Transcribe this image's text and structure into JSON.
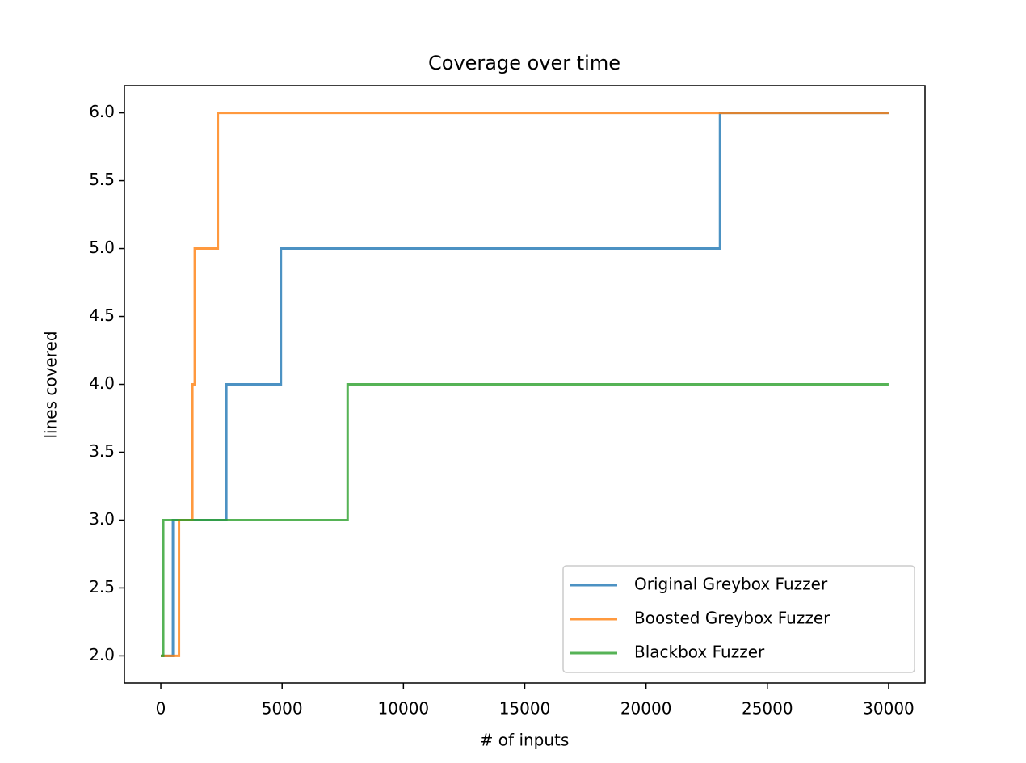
{
  "chart_data": {
    "type": "line",
    "title": "Coverage over time",
    "x_label": "# of inputs",
    "y_label": "lines covered",
    "xlim": [
      -1500,
      31500
    ],
    "xticks": [
      0,
      5000,
      10000,
      15000,
      20000,
      25000,
      30000
    ],
    "ylim": [
      1.8,
      6.2
    ],
    "yticks": [
      {
        "value": 2,
        "label": "2.0"
      },
      {
        "value": 2.5,
        "label": "2.5"
      },
      {
        "value": 3,
        "label": "3.0"
      },
      {
        "value": 3.5,
        "label": "3.5"
      },
      {
        "value": 4,
        "label": "4.0"
      },
      {
        "value": 4.5,
        "label": "4.5"
      },
      {
        "value": 5,
        "label": "5.0"
      },
      {
        "value": 5.5,
        "label": "5.5"
      },
      {
        "value": 6,
        "label": "6.0"
      }
    ],
    "legend": "lower right",
    "series": [
      {
        "name": "Original Greybox Fuzzer",
        "color": "#1f77b4",
        "x": [
          0,
          500,
          500,
          2700,
          2700,
          4950,
          4950,
          23050,
          23050,
          30000
        ],
        "values": [
          2,
          2,
          3,
          3,
          4,
          4,
          5,
          5,
          6,
          6
        ]
      },
      {
        "name": "Boosted Greybox Fuzzer",
        "color": "#ff7f0e",
        "x": [
          0,
          750,
          750,
          1300,
          1300,
          1400,
          1400,
          2350,
          2350,
          30000
        ],
        "values": [
          2,
          2,
          3,
          3,
          4,
          4,
          5,
          5,
          6,
          6
        ]
      },
      {
        "name": "Blackbox Fuzzer",
        "color": "#2ca02c",
        "x": [
          0,
          100,
          100,
          7700,
          7700,
          30000
        ],
        "values": [
          2,
          2,
          3,
          3,
          4,
          4
        ]
      }
    ]
  }
}
